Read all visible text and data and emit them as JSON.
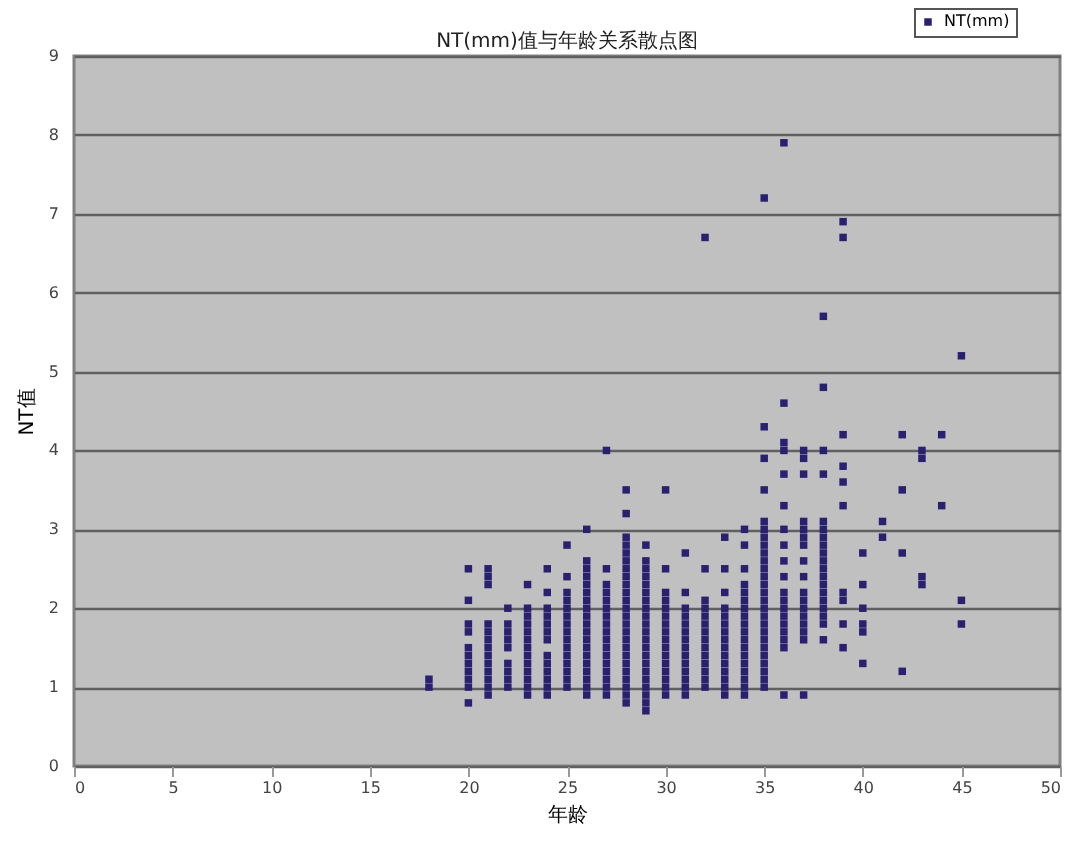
{
  "chart_data": {
    "type": "scatter",
    "title": "NT(mm)值与年龄关系散点图",
    "xlabel": "年龄",
    "ylabel": "NT值",
    "xlim": [
      0,
      50
    ],
    "xticks": [
      0,
      5,
      10,
      15,
      20,
      25,
      30,
      35,
      40,
      45,
      50
    ],
    "ylim": [
      0,
      9
    ],
    "yticks": [
      0,
      1,
      2,
      3,
      4,
      5,
      6,
      7,
      8,
      9
    ],
    "grid": "y",
    "legend": "top right",
    "marker": "square",
    "series": [
      {
        "name": "NT(mm)",
        "color": "#2a2070",
        "x": [
          18,
          18,
          20,
          20,
          20,
          20,
          20,
          20,
          20,
          20,
          20,
          20,
          20,
          21,
          21,
          21,
          21,
          21,
          21,
          21,
          21,
          21,
          21,
          21,
          21,
          21,
          22,
          22,
          22,
          22,
          22,
          22,
          22,
          22,
          22,
          23,
          23,
          23,
          23,
          23,
          23,
          23,
          23,
          23,
          23,
          23,
          23,
          23,
          24,
          24,
          24,
          24,
          24,
          24,
          24,
          24,
          24,
          24,
          24,
          24,
          24,
          25,
          25,
          25,
          25,
          25,
          25,
          25,
          25,
          25,
          25,
          25,
          25,
          25,
          25,
          25,
          26,
          26,
          26,
          26,
          26,
          26,
          26,
          26,
          26,
          26,
          26,
          26,
          26,
          26,
          26,
          26,
          26,
          26,
          26,
          27,
          27,
          27,
          27,
          27,
          27,
          27,
          27,
          27,
          27,
          27,
          27,
          27,
          27,
          27,
          27,
          27,
          28,
          28,
          28,
          28,
          28,
          28,
          28,
          28,
          28,
          28,
          28,
          28,
          28,
          28,
          28,
          28,
          28,
          28,
          28,
          28,
          28,
          28,
          28,
          28,
          29,
          29,
          29,
          29,
          29,
          29,
          29,
          29,
          29,
          29,
          29,
          29,
          29,
          29,
          29,
          29,
          29,
          29,
          29,
          29,
          29,
          30,
          30,
          30,
          30,
          30,
          30,
          30,
          30,
          30,
          30,
          30,
          30,
          30,
          30,
          30,
          30,
          31,
          31,
          31,
          31,
          31,
          31,
          31,
          31,
          31,
          31,
          31,
          31,
          31,
          31,
          32,
          32,
          32,
          32,
          32,
          32,
          32,
          32,
          32,
          32,
          32,
          32,
          32,
          32,
          33,
          33,
          33,
          33,
          33,
          33,
          33,
          33,
          33,
          33,
          33,
          33,
          33,
          33,
          33,
          34,
          34,
          34,
          34,
          34,
          34,
          34,
          34,
          34,
          34,
          34,
          34,
          34,
          34,
          34,
          34,
          34,
          34,
          35,
          35,
          35,
          35,
          35,
          35,
          35,
          35,
          35,
          35,
          35,
          35,
          35,
          35,
          35,
          35,
          35,
          35,
          35,
          35,
          35,
          35,
          35,
          35,
          35,
          35,
          36,
          36,
          36,
          36,
          36,
          36,
          36,
          36,
          36,
          36,
          36,
          36,
          36,
          36,
          36,
          36,
          36,
          36,
          36,
          37,
          37,
          37,
          37,
          37,
          37,
          37,
          37,
          37,
          37,
          37,
          37,
          37,
          37,
          37,
          37,
          37,
          38,
          38,
          38,
          38,
          38,
          38,
          38,
          38,
          38,
          38,
          38,
          38,
          38,
          38,
          38,
          38,
          38,
          38,
          38,
          39,
          39,
          39,
          39,
          39,
          39,
          39,
          39,
          39,
          39,
          40,
          40,
          40,
          40,
          40,
          40,
          41,
          41,
          42,
          42,
          42,
          42,
          43,
          43,
          43,
          43,
          44,
          44,
          45,
          45,
          45
        ],
        "values": [
          1.0,
          1.1,
          0.8,
          1.0,
          1.1,
          1.2,
          1.3,
          1.4,
          1.5,
          1.7,
          1.8,
          2.1,
          2.5,
          0.9,
          1.0,
          1.1,
          1.2,
          1.3,
          1.4,
          1.5,
          1.6,
          1.7,
          1.8,
          2.3,
          2.4,
          2.5,
          1.0,
          1.1,
          1.2,
          1.3,
          1.5,
          1.6,
          1.7,
          1.8,
          2.0,
          0.9,
          1.0,
          1.1,
          1.2,
          1.3,
          1.4,
          1.5,
          1.6,
          1.7,
          1.8,
          1.9,
          2.0,
          2.3,
          0.9,
          1.0,
          1.1,
          1.2,
          1.3,
          1.4,
          1.6,
          1.7,
          1.8,
          1.9,
          2.0,
          2.2,
          2.5,
          1.0,
          1.1,
          1.2,
          1.3,
          1.4,
          1.5,
          1.6,
          1.7,
          1.8,
          1.9,
          2.0,
          2.1,
          2.2,
          2.4,
          2.8,
          0.9,
          1.0,
          1.1,
          1.2,
          1.3,
          1.4,
          1.5,
          1.6,
          1.7,
          1.8,
          1.9,
          2.0,
          2.1,
          2.2,
          2.3,
          2.4,
          2.5,
          2.6,
          3.0,
          0.9,
          1.0,
          1.1,
          1.2,
          1.3,
          1.4,
          1.5,
          1.6,
          1.7,
          1.8,
          1.9,
          2.0,
          2.1,
          2.2,
          2.3,
          2.5,
          4.0,
          0.8,
          0.9,
          1.0,
          1.1,
          1.2,
          1.3,
          1.4,
          1.5,
          1.6,
          1.7,
          1.8,
          1.9,
          2.0,
          2.1,
          2.2,
          2.3,
          2.4,
          2.5,
          2.6,
          2.7,
          2.8,
          2.9,
          3.2,
          3.5,
          0.7,
          0.8,
          0.9,
          1.0,
          1.1,
          1.2,
          1.3,
          1.4,
          1.5,
          1.6,
          1.7,
          1.8,
          1.9,
          2.0,
          2.1,
          2.2,
          2.3,
          2.4,
          2.5,
          2.6,
          2.8,
          0.9,
          1.0,
          1.1,
          1.2,
          1.3,
          1.4,
          1.5,
          1.6,
          1.7,
          1.8,
          1.9,
          2.0,
          2.1,
          2.2,
          2.5,
          3.5,
          0.9,
          1.0,
          1.1,
          1.2,
          1.3,
          1.4,
          1.5,
          1.6,
          1.7,
          1.8,
          1.9,
          2.0,
          2.2,
          2.7,
          1.0,
          1.1,
          1.2,
          1.3,
          1.4,
          1.5,
          1.6,
          1.7,
          1.8,
          1.9,
          2.0,
          2.1,
          2.5,
          6.7,
          0.9,
          1.0,
          1.1,
          1.2,
          1.3,
          1.4,
          1.5,
          1.6,
          1.7,
          1.8,
          1.9,
          2.0,
          2.2,
          2.5,
          2.9,
          0.9,
          1.0,
          1.1,
          1.2,
          1.3,
          1.4,
          1.5,
          1.6,
          1.7,
          1.8,
          1.9,
          2.0,
          2.1,
          2.2,
          2.3,
          2.5,
          2.8,
          3.0,
          1.0,
          1.1,
          1.2,
          1.3,
          1.4,
          1.5,
          1.6,
          1.7,
          1.8,
          1.9,
          2.0,
          2.1,
          2.2,
          2.3,
          2.4,
          2.5,
          2.6,
          2.7,
          2.8,
          2.9,
          3.0,
          3.1,
          3.5,
          3.9,
          4.3,
          7.2,
          0.9,
          1.5,
          1.6,
          1.7,
          1.8,
          1.9,
          2.0,
          2.1,
          2.2,
          2.4,
          2.6,
          2.8,
          3.0,
          3.3,
          3.7,
          4.0,
          4.1,
          4.6,
          7.9,
          0.9,
          1.6,
          1.7,
          1.8,
          1.9,
          2.0,
          2.1,
          2.2,
          2.4,
          2.6,
          2.8,
          2.9,
          3.0,
          3.1,
          3.7,
          3.9,
          4.0,
          1.6,
          1.8,
          1.9,
          2.0,
          2.1,
          2.2,
          2.3,
          2.4,
          2.5,
          2.6,
          2.7,
          2.8,
          2.9,
          3.0,
          3.1,
          3.7,
          4.0,
          4.8,
          5.7,
          1.5,
          1.8,
          2.1,
          2.2,
          3.3,
          3.6,
          3.8,
          4.2,
          6.7,
          6.9,
          1.3,
          1.7,
          1.8,
          2.0,
          2.3,
          2.7,
          2.9,
          3.1,
          1.2,
          2.7,
          3.5,
          4.2,
          2.3,
          2.4,
          3.9,
          4.0,
          3.3,
          4.2,
          1.8,
          2.1,
          5.2
        ]
      }
    ]
  }
}
